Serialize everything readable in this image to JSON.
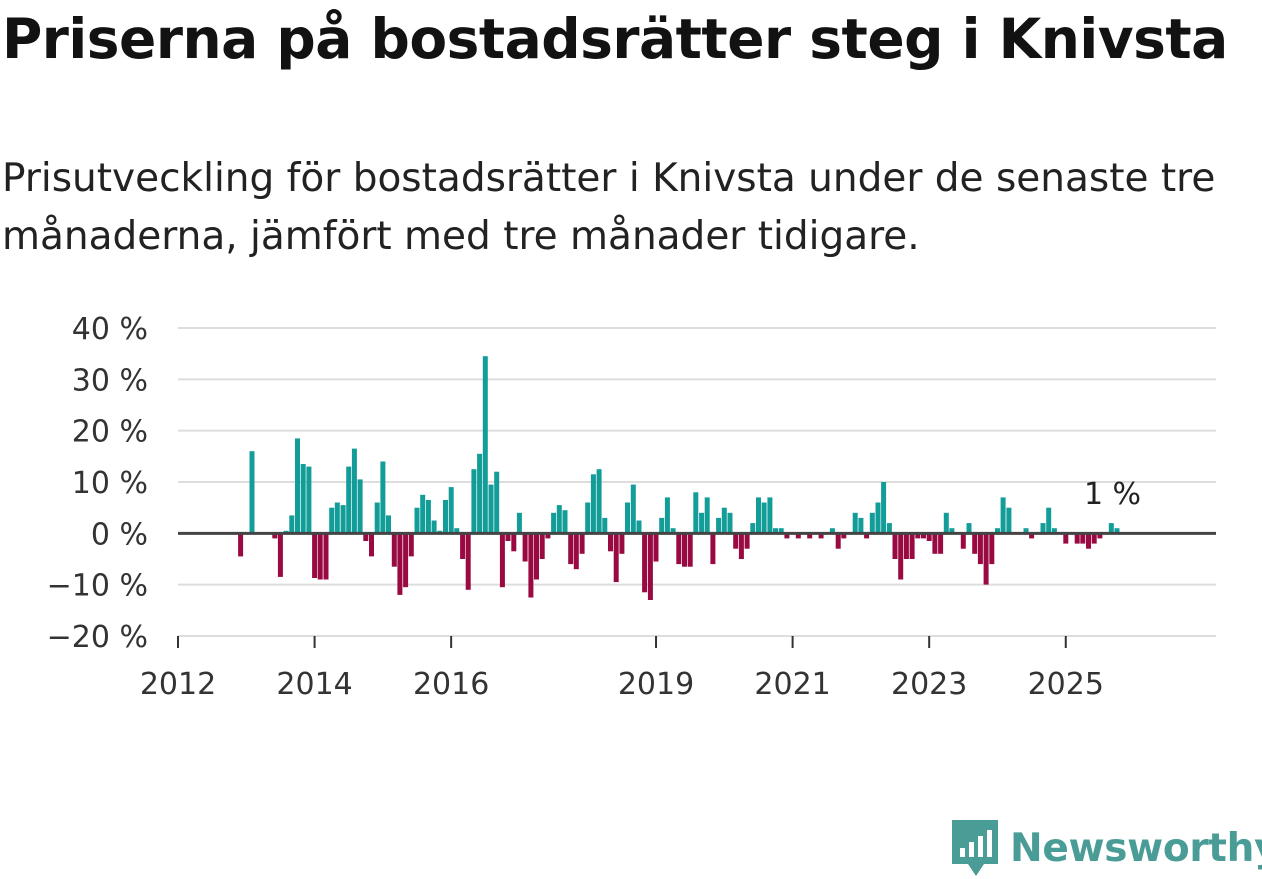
{
  "title": "Priserna på bostadsrätter steg i Knivsta",
  "subtitle": "Prisutveckling för bostadsrätter i Knivsta under de senaste tre månaderna, jämfört med tre månader tidigare.",
  "brand": {
    "name": "Newsworthy",
    "icon": "newsworthy-logo-icon"
  },
  "colors": {
    "positive": "#139d98",
    "negative": "#990942",
    "grid": "#dddddd",
    "zero": "#444444",
    "brand": "#4a9c97"
  },
  "chart_data": {
    "type": "bar",
    "title": "Priserna på bostadsrätter steg i Knivsta",
    "ylabel": "",
    "xlabel": "",
    "ylim": [
      -20,
      40
    ],
    "xlim": [
      2012.0,
      2027.2
    ],
    "y_ticks": [
      -20,
      -10,
      0,
      10,
      20,
      30,
      40
    ],
    "y_tick_labels": [
      "−20 %",
      "−10 %",
      "0 %",
      "10 %",
      "20 %",
      "30 %",
      "40 %"
    ],
    "x_ticks": [
      2012,
      2014,
      2016,
      2019,
      2021,
      2023,
      2025
    ],
    "x_tick_labels": [
      "2012",
      "2014",
      "2016",
      "2019",
      "2021",
      "2023",
      "2025"
    ],
    "annotation": {
      "text": "1 %",
      "x": 2025.67,
      "y": 1
    },
    "x": [
      2012.917,
      2013.083,
      2013.417,
      2013.5,
      2013.583,
      2013.667,
      2013.75,
      2013.833,
      2013.917,
      2014.0,
      2014.083,
      2014.167,
      2014.25,
      2014.333,
      2014.417,
      2014.5,
      2014.583,
      2014.667,
      2014.75,
      2014.833,
      2014.917,
      2015.0,
      2015.083,
      2015.167,
      2015.25,
      2015.333,
      2015.417,
      2015.5,
      2015.583,
      2015.667,
      2015.75,
      2015.833,
      2015.917,
      2016.0,
      2016.083,
      2016.167,
      2016.25,
      2016.333,
      2016.417,
      2016.5,
      2016.583,
      2016.667,
      2016.75,
      2016.833,
      2016.917,
      2017.0,
      2017.083,
      2017.167,
      2017.25,
      2017.333,
      2017.417,
      2017.5,
      2017.583,
      2017.667,
      2017.75,
      2017.833,
      2017.917,
      2018.0,
      2018.083,
      2018.167,
      2018.25,
      2018.333,
      2018.417,
      2018.5,
      2018.583,
      2018.667,
      2018.75,
      2018.833,
      2018.917,
      2019.0,
      2019.083,
      2019.167,
      2019.25,
      2019.333,
      2019.417,
      2019.5,
      2019.583,
      2019.667,
      2019.75,
      2019.833,
      2019.917,
      2020.0,
      2020.083,
      2020.167,
      2020.25,
      2020.333,
      2020.417,
      2020.5,
      2020.583,
      2020.667,
      2020.75,
      2020.833,
      2020.917,
      2021.083,
      2021.25,
      2021.417,
      2021.583,
      2021.667,
      2021.75,
      2021.917,
      2022.0,
      2022.083,
      2022.167,
      2022.25,
      2022.333,
      2022.417,
      2022.5,
      2022.583,
      2022.667,
      2022.75,
      2022.833,
      2022.917,
      2023.0,
      2023.083,
      2023.167,
      2023.25,
      2023.333,
      2023.5,
      2023.583,
      2023.667,
      2023.75,
      2023.833,
      2023.917,
      2024.0,
      2024.083,
      2024.167,
      2024.417,
      2024.5,
      2024.667,
      2024.75,
      2024.833,
      2025.0,
      2025.167,
      2025.25,
      2025.333,
      2025.417,
      2025.5,
      2025.667,
      2025.75
    ],
    "values": [
      -4.5,
      16,
      -1,
      -8.5,
      0.5,
      3.5,
      18.5,
      13.5,
      13,
      -8.7,
      -9,
      -9,
      5,
      6,
      5.5,
      13,
      16.5,
      10.5,
      -1.5,
      -4.5,
      6,
      14,
      3.5,
      -6.5,
      -12,
      -10.5,
      -4.5,
      5,
      7.5,
      6.5,
      2.5,
      0.5,
      6.5,
      9,
      1,
      -5,
      -11,
      12.5,
      15.5,
      34.5,
      9.5,
      12,
      -10.5,
      -1.5,
      -3.5,
      4,
      -5.5,
      -12.5,
      -9,
      -5,
      -1,
      4,
      5.5,
      4.5,
      -6,
      -7,
      -4,
      6,
      11.5,
      12.5,
      3,
      -3.5,
      -9.5,
      -4,
      6,
      9.5,
      2.5,
      -11.5,
      -13,
      -5.5,
      3,
      7,
      1,
      -6,
      -6.5,
      -6.5,
      8,
      4,
      7,
      -6,
      3,
      5,
      4,
      -3,
      -5,
      -3,
      2,
      7,
      6,
      7,
      1,
      1,
      -1,
      -1,
      -1,
      -1,
      1,
      -3,
      -1,
      4,
      3,
      -1,
      4,
      6,
      10,
      2,
      -5,
      -9,
      -5,
      -5,
      -1,
      -1,
      -1.5,
      -4,
      -4,
      4,
      1,
      -3,
      2,
      -4,
      -6,
      -10,
      -6,
      1,
      7,
      5,
      1,
      -1,
      2,
      5,
      1,
      -2,
      -2,
      -2,
      -3,
      -2,
      -1,
      2,
      1
    ]
  }
}
